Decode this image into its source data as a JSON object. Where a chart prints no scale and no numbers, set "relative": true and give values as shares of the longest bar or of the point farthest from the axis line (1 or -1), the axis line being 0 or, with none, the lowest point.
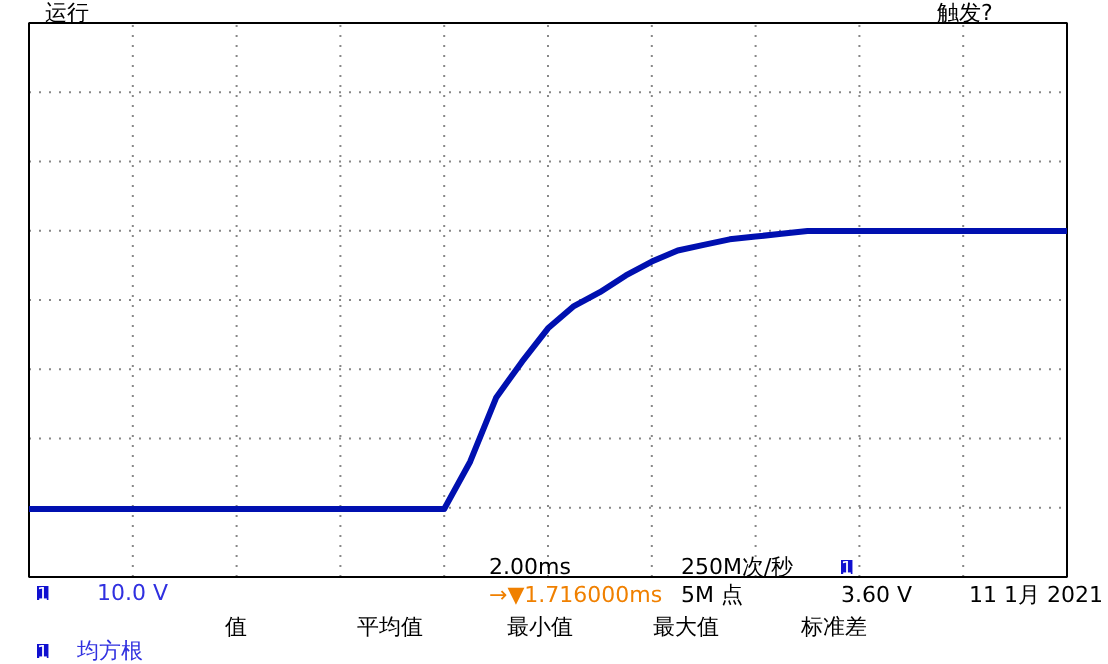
{
  "chart_data": {
    "type": "line",
    "relative": true,
    "grid": true,
    "marker": "none",
    "line_style": "solid",
    "categories": [
      null,
      null,
      null,
      null,
      null,
      null,
      null,
      null,
      null,
      null,
      null,
      null,
      null,
      null,
      null,
      null,
      null,
      null,
      null,
      null,
      null,
      null,
      null,
      null,
      null,
      null,
      null,
      null,
      null,
      null,
      null,
      null,
      null,
      null,
      null,
      null,
      null,
      null,
      null,
      null,
      null
    ],
    "series": [
      {
        "color": "#0010b0",
        "values": [
          0,
          0,
          0,
          0,
          0,
          0,
          0,
          0,
          0,
          0,
          0,
          0,
          0,
          0,
          0,
          0,
          0,
          0.17,
          0.4,
          0.53,
          0.65,
          0.73,
          0.78,
          0.84,
          0.89,
          0.93,
          0.95,
          0.97,
          0.98,
          0.99,
          1,
          1,
          1,
          1,
          1,
          1,
          1,
          1,
          1,
          1,
          1
        ]
      }
    ],
    "annotations": [
      "运行",
      "触发?",
      "1",
      "10.0 V",
      "2.00ms",
      "250M次/秒",
      "1",
      "→▼1.716000ms",
      "5M 点",
      "3.60 V",
      "11 1月 2021",
      "值",
      "平均值",
      "最小值",
      "最大值",
      "标准差",
      "1",
      "均方根"
    ]
  }
}
